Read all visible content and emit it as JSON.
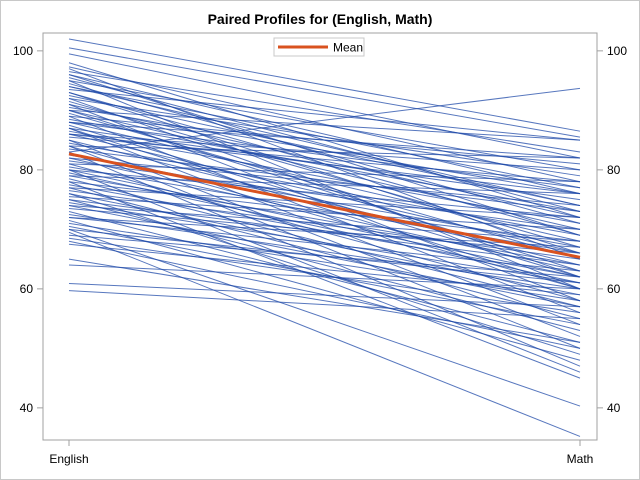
{
  "chart_data": {
    "type": "line",
    "title": "Paired Profiles for (English, Math)",
    "categories": [
      "English",
      "Math"
    ],
    "xlabel": "",
    "ylabel": "",
    "ylim": [
      34.6,
      103
    ],
    "yticks": [
      40,
      60,
      80,
      100
    ],
    "grid": false,
    "legend": {
      "placement": "top-center",
      "entries": [
        "Mean"
      ]
    },
    "colors": {
      "profile": "#1f4aa8",
      "mean": "#d9521f"
    },
    "mean": [
      82.7,
      65.3
    ],
    "pairs": [
      [
        102,
        86.5
      ],
      [
        100.5,
        85.5
      ],
      [
        99.5,
        82
      ],
      [
        97.3,
        78
      ],
      [
        96.5,
        83
      ],
      [
        96,
        76
      ],
      [
        95.5,
        73
      ],
      [
        95,
        80
      ],
      [
        94.5,
        71
      ],
      [
        94,
        77
      ],
      [
        93.5,
        85
      ],
      [
        93,
        69
      ],
      [
        92.5,
        74
      ],
      [
        92,
        79
      ],
      [
        91.5,
        67
      ],
      [
        91,
        72
      ],
      [
        90.5,
        76
      ],
      [
        90,
        70
      ],
      [
        89.5,
        65
      ],
      [
        89,
        81
      ],
      [
        88.5,
        73
      ],
      [
        88,
        68
      ],
      [
        87.5,
        62
      ],
      [
        87,
        75
      ],
      [
        86.5,
        71
      ],
      [
        86,
        66
      ],
      [
        85.5,
        78
      ],
      [
        85,
        64
      ],
      [
        84.5,
        69
      ],
      [
        84,
        60
      ],
      [
        83.5,
        73
      ],
      [
        83,
        93.7
      ],
      [
        82.5,
        67
      ],
      [
        82,
        63
      ],
      [
        81.5,
        70
      ],
      [
        81,
        58
      ],
      [
        80.5,
        66
      ],
      [
        80,
        72
      ],
      [
        79.5,
        61
      ],
      [
        79,
        64
      ],
      [
        78.5,
        57
      ],
      [
        78,
        68
      ],
      [
        77.5,
        62
      ],
      [
        77,
        55
      ],
      [
        76.5,
        65
      ],
      [
        76,
        59
      ],
      [
        75.5,
        70
      ],
      [
        75,
        53
      ],
      [
        74.5,
        61
      ],
      [
        74,
        57
      ],
      [
        73.5,
        66
      ],
      [
        73,
        51
      ],
      [
        72.5,
        60
      ],
      [
        72,
        63
      ],
      [
        71.5,
        48
      ],
      [
        71,
        58
      ],
      [
        70.5,
        54
      ],
      [
        70,
        40.3
      ],
      [
        69.5,
        35.2
      ],
      [
        69,
        62
      ],
      [
        68.5,
        56
      ],
      [
        68,
        50
      ],
      [
        67.5,
        59
      ],
      [
        65,
        51
      ],
      [
        64,
        60
      ],
      [
        60.9,
        57
      ],
      [
        59.7,
        55
      ],
      [
        90,
        85
      ],
      [
        88,
        82
      ],
      [
        86,
        80
      ],
      [
        92,
        62
      ],
      [
        95,
        60
      ],
      [
        97,
        65
      ],
      [
        91,
        58
      ],
      [
        85,
        52
      ],
      [
        83,
        47
      ],
      [
        80,
        46
      ],
      [
        78,
        45
      ],
      [
        76,
        49
      ],
      [
        89,
        56
      ],
      [
        87,
        54
      ],
      [
        84,
        50
      ],
      [
        82,
        74
      ],
      [
        79,
        76
      ],
      [
        77,
        72
      ],
      [
        74,
        68
      ],
      [
        81,
        78
      ],
      [
        86,
        76
      ],
      [
        93,
        66
      ],
      [
        96,
        69
      ],
      [
        84,
        82
      ],
      [
        88,
        77
      ],
      [
        80,
        62
      ],
      [
        75,
        64
      ],
      [
        72,
        67
      ],
      [
        70,
        61
      ],
      [
        87,
        60
      ],
      [
        90,
        63
      ],
      [
        94,
        74
      ],
      [
        98,
        72
      ]
    ]
  }
}
